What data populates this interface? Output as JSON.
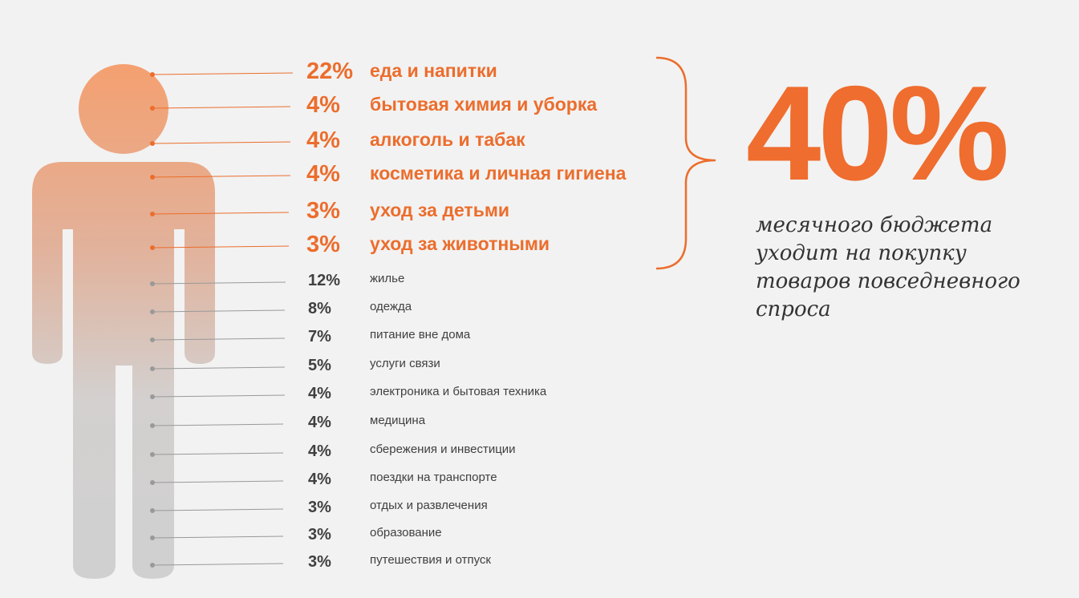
{
  "summary": {
    "big_value": "40%",
    "caption": "месячного бюджета уходит на покупку товаров повседневного спроса"
  },
  "colors": {
    "accent": "#ec6d2c",
    "figure_top": "#f4a070",
    "figure_bottom": "#d0d0d0",
    "dark_text": "#404040",
    "line_gray": "#999999"
  },
  "chart_data": {
    "type": "table",
    "highlighted_total": "40%",
    "categories": [
      {
        "percent": "22%",
        "label": "еда и напитки",
        "highlight": true
      },
      {
        "percent": "4%",
        "label": "бытовая химия и уборка",
        "highlight": true
      },
      {
        "percent": "4%",
        "label": "алкоголь и табак",
        "highlight": true
      },
      {
        "percent": "4%",
        "label": "косметика и личная гигиена",
        "highlight": true
      },
      {
        "percent": "3%",
        "label": "уход за детьми",
        "highlight": true
      },
      {
        "percent": "3%",
        "label": "уход за животными",
        "highlight": true
      },
      {
        "percent": "12%",
        "label": "жилье",
        "highlight": false
      },
      {
        "percent": "8%",
        "label": "одежда",
        "highlight": false
      },
      {
        "percent": "7%",
        "label": "питание вне дома",
        "highlight": false
      },
      {
        "percent": "5%",
        "label": "услуги связи",
        "highlight": false
      },
      {
        "percent": "4%",
        "label": "электроника и бытовая техника",
        "highlight": false
      },
      {
        "percent": "4%",
        "label": "медицина",
        "highlight": false
      },
      {
        "percent": "4%",
        "label": "сбережения и инвестиции",
        "highlight": false
      },
      {
        "percent": "4%",
        "label": "поездки на транспорте",
        "highlight": false
      },
      {
        "percent": "3%",
        "label": "отдых и развлечения",
        "highlight": false
      },
      {
        "percent": "3%",
        "label": "образование",
        "highlight": false
      },
      {
        "percent": "3%",
        "label": "путешествия и отпуск",
        "highlight": false
      }
    ]
  }
}
